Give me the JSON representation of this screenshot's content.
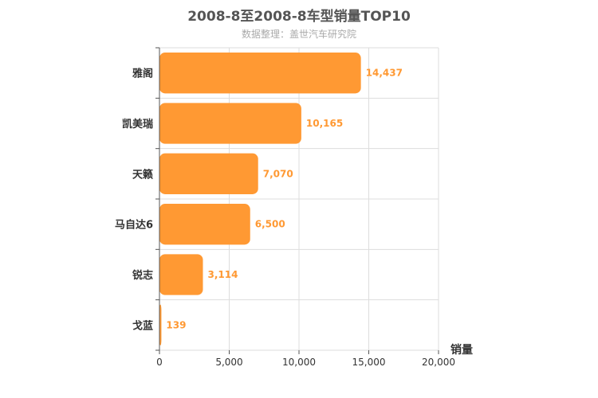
{
  "chart_data": {
    "type": "bar",
    "orientation": "horizontal",
    "title": "2008-8至2008-8车型销量TOP10",
    "subtitle": "数据整理：盖世汽车研究院",
    "categories": [
      "雅阁",
      "凯美瑞",
      "天籁",
      "马自达6",
      "锐志",
      "戈蓝"
    ],
    "values": [
      14437,
      10165,
      7070,
      6500,
      3114,
      139
    ],
    "value_labels": [
      "14,437",
      "10,165",
      "7,070",
      "6,500",
      "3,114",
      "139"
    ],
    "xlabel": "销量",
    "ylabel": "",
    "xlim": [
      0,
      20000
    ],
    "xticks": [
      0,
      5000,
      10000,
      15000,
      20000
    ],
    "xtick_labels": [
      "0",
      "5,000",
      "10,000",
      "15,000",
      "20,000"
    ],
    "grid": true,
    "bar_color": "#ff9933",
    "label_color": "#ff9933"
  }
}
